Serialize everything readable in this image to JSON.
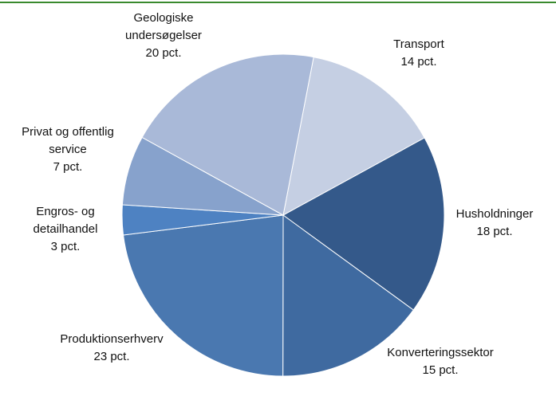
{
  "chart_data": {
    "type": "pie",
    "categories": [
      "Transport",
      "Husholdninger",
      "Konverteringssektor",
      "Produktionserhverv",
      "Engros- og detailhandel",
      "Privat og offentlig service",
      "Geologiske undersøgelser"
    ],
    "values": [
      14,
      18,
      15,
      23,
      3,
      7,
      20
    ],
    "value_labels": [
      "14 pct.",
      "18 pct.",
      "15 pct.",
      "23 pct.",
      "3 pct.",
      "7 pct.",
      "20 pct."
    ],
    "colors": [
      "#c5cfe3",
      "#34598a",
      "#3f6aa0",
      "#4a78b0",
      "#4e82c2",
      "#87a2cc",
      "#a9b9d8"
    ]
  }
}
